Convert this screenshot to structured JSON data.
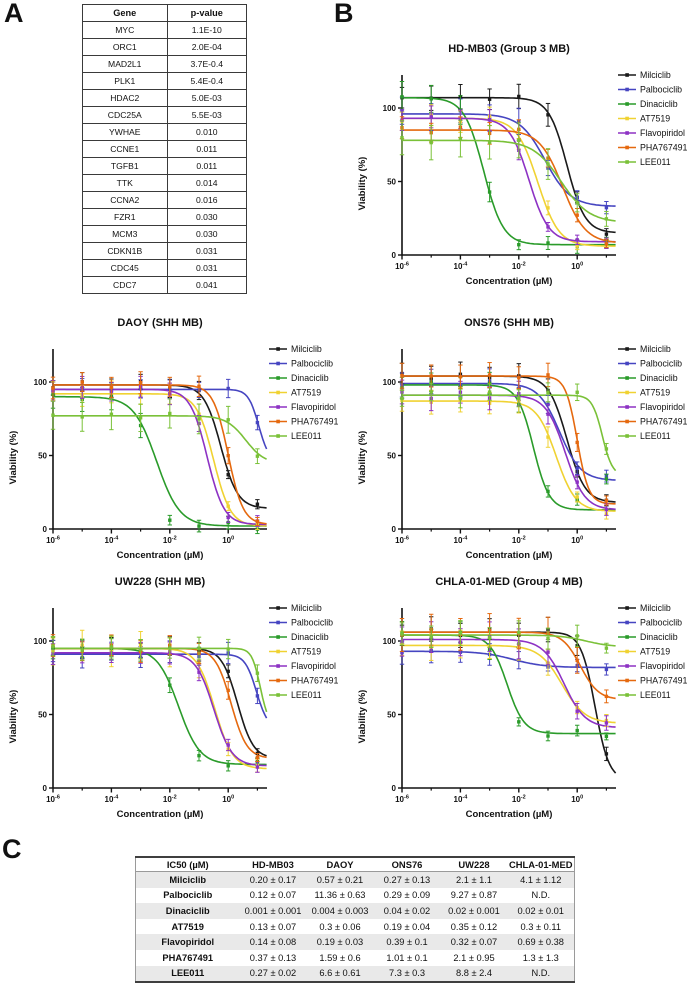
{
  "panel_labels": {
    "a": "A",
    "b": "B",
    "c": "C"
  },
  "gene_table": {
    "headers": [
      "Gene",
      "p-value"
    ],
    "rows": [
      [
        "MYC",
        "1.1E-10"
      ],
      [
        "ORC1",
        "2.0E-04"
      ],
      [
        "MAD2L1",
        "3.7E-0.4"
      ],
      [
        "PLK1",
        "5.4E-0.4"
      ],
      [
        "HDAC2",
        "5.0E-03"
      ],
      [
        "CDC25A",
        "5.5E-03"
      ],
      [
        "YWHAE",
        "0.010"
      ],
      [
        "CCNE1",
        "0.011"
      ],
      [
        "TGFB1",
        "0.011"
      ],
      [
        "TTK",
        "0.014"
      ],
      [
        "CCNA2",
        "0.016"
      ],
      [
        "FZR1",
        "0.030"
      ],
      [
        "MCM3",
        "0.030"
      ],
      [
        "CDKN1B",
        "0.031"
      ],
      [
        "CDC45",
        "0.031"
      ],
      [
        "CDC7",
        "0.041"
      ]
    ]
  },
  "chart_common": {
    "type": "line",
    "xlabel": "Concentration (µM)",
    "ylabel": "Viability (%)",
    "x_scale": "log10",
    "x_log_range": [
      -6,
      1.33
    ],
    "ylim": [
      0,
      122
    ],
    "y_ticks": [
      "0",
      "50",
      "100"
    ],
    "x_major_ticks": [
      {
        "log": -6,
        "base": "10",
        "exp": "-6"
      },
      {
        "log": -4,
        "base": "10",
        "exp": "-4"
      },
      {
        "log": -2,
        "base": "10",
        "exp": "-2"
      },
      {
        "log": 0,
        "base": "10",
        "exp": "0"
      }
    ],
    "x_minor_ticks": [
      -5,
      -3,
      -1,
      1
    ],
    "marker_decades": [
      -6,
      -5,
      -4,
      -3,
      -2,
      -1,
      0,
      1
    ],
    "grid": false,
    "legend_position": "right",
    "legend": [
      {
        "name": "Milciclib",
        "color": "#1a1a1a"
      },
      {
        "name": "Palbociclib",
        "color": "#4645c1"
      },
      {
        "name": "Dinaciclib",
        "color": "#2a9b2a"
      },
      {
        "name": "AT7519",
        "color": "#f0d232"
      },
      {
        "name": "Flavopiridol",
        "color": "#8d32c4"
      },
      {
        "name": "PHA767491",
        "color": "#e5690f"
      },
      {
        "name": "LEE011",
        "color": "#7ac138"
      }
    ]
  },
  "chart_data": [
    {
      "id": "hd-mb03",
      "type": "line",
      "title": "HD-MB03 (Group 3 MB)",
      "series": [
        {
          "name": "Milciclib",
          "color": "#1a1a1a",
          "top": 107,
          "bottom": 15,
          "log_ic50": -0.35,
          "slope": 1.4,
          "err": 7
        },
        {
          "name": "Palbociclib",
          "color": "#4645c1",
          "top": 96,
          "bottom": 33,
          "log_ic50": -1.1,
          "slope": 1.0,
          "err": 8
        },
        {
          "name": "Dinaciclib",
          "color": "#2a9b2a",
          "top": 107,
          "bottom": 7,
          "log_ic50": -3.2,
          "slope": 1.3,
          "err": 9,
          "pts": {
            "-2": 7
          }
        },
        {
          "name": "AT7519",
          "color": "#f0d232",
          "top": 93,
          "bottom": 6,
          "log_ic50": -1.35,
          "slope": 1.2,
          "err": 6
        },
        {
          "name": "Flavopiridol",
          "color": "#8d32c4",
          "top": 93,
          "bottom": 9,
          "log_ic50": -1.65,
          "slope": 1.3,
          "err": 6
        },
        {
          "name": "PHA767491",
          "color": "#e5690f",
          "top": 85,
          "bottom": 8,
          "log_ic50": -0.5,
          "slope": 1.1,
          "err": 6
        },
        {
          "name": "LEE011",
          "color": "#7ac138",
          "top": 78,
          "bottom": 22,
          "log_ic50": -0.55,
          "slope": 0.9,
          "err": 11,
          "pts": {
            "-2": 78
          }
        }
      ]
    },
    {
      "id": "daoy",
      "type": "line",
      "title": "DAOY (SHH MB)",
      "series": [
        {
          "name": "Milciclib",
          "color": "#1a1a1a",
          "top": 98,
          "bottom": 14,
          "log_ic50": -0.25,
          "slope": 1.5,
          "err": 5
        },
        {
          "name": "Palbociclib",
          "color": "#4645c1",
          "top": 95,
          "bottom": 45,
          "log_ic50": 1.05,
          "slope": 2.4,
          "err": 5
        },
        {
          "name": "Dinaciclib",
          "color": "#2a9b2a",
          "top": 90,
          "bottom": 2,
          "log_ic50": -2.45,
          "slope": 1.1,
          "err": 8,
          "pts": {
            "-2": 6
          }
        },
        {
          "name": "AT7519",
          "color": "#f0d232",
          "top": 92,
          "bottom": 2,
          "log_ic50": -0.5,
          "slope": 1.5,
          "err": 6
        },
        {
          "name": "Flavopiridol",
          "color": "#8d32c4",
          "top": 95,
          "bottom": 3,
          "log_ic50": -0.72,
          "slope": 1.5,
          "err": 6
        },
        {
          "name": "PHA767491",
          "color": "#e5690f",
          "top": 98,
          "bottom": 3,
          "log_ic50": 0.0,
          "slope": 1.7,
          "err": 6
        },
        {
          "name": "LEE011",
          "color": "#7ac138",
          "top": 77,
          "bottom": 44,
          "log_ic50": 0.6,
          "slope": 1.3,
          "err": 9
        }
      ]
    },
    {
      "id": "ons76",
      "type": "line",
      "title": "ONS76 (SHH MB)",
      "series": [
        {
          "name": "Milciclib",
          "color": "#1a1a1a",
          "top": 104,
          "bottom": 18,
          "log_ic50": -0.35,
          "slope": 1.4,
          "err": 7
        },
        {
          "name": "Palbociclib",
          "color": "#4645c1",
          "top": 99,
          "bottom": 33,
          "log_ic50": -0.6,
          "slope": 1.2,
          "err": 7
        },
        {
          "name": "Dinaciclib",
          "color": "#2a9b2a",
          "top": 98,
          "bottom": 13,
          "log_ic50": -1.5,
          "slope": 1.6,
          "err": 6,
          "pts": {
            "0": 20,
            "1": 34
          }
        },
        {
          "name": "AT7519",
          "color": "#f0d232",
          "top": 87,
          "bottom": 12,
          "log_ic50": -0.72,
          "slope": 1.3,
          "err": 7
        },
        {
          "name": "Flavopiridol",
          "color": "#8d32c4",
          "top": 91,
          "bottom": 13,
          "log_ic50": -0.41,
          "slope": 1.3,
          "err": 7
        },
        {
          "name": "PHA767491",
          "color": "#e5690f",
          "top": 104,
          "bottom": 17,
          "log_ic50": 0.0,
          "slope": 2.2,
          "err": 7
        },
        {
          "name": "LEE011",
          "color": "#7ac138",
          "top": 91,
          "bottom": 36,
          "log_ic50": 0.86,
          "slope": 2.5,
          "err": 5,
          "pts": {
            "0": 93
          }
        }
      ]
    },
    {
      "id": "uw228",
      "type": "line",
      "title": "UW228 (SHH MB)",
      "series": [
        {
          "name": "Milciclib",
          "color": "#1a1a1a",
          "top": 95,
          "bottom": 20,
          "log_ic50": 0.32,
          "slope": 1.6,
          "err": 5
        },
        {
          "name": "Palbociclib",
          "color": "#4645c1",
          "top": 91,
          "bottom": 40,
          "log_ic50": 0.97,
          "slope": 2.2,
          "err": 6
        },
        {
          "name": "Dinaciclib",
          "color": "#2a9b2a",
          "top": 95,
          "bottom": 16,
          "log_ic50": -1.7,
          "slope": 1.2,
          "err": 6,
          "pts": {
            "-1": 22
          }
        },
        {
          "name": "AT7519",
          "color": "#f0d232",
          "top": 95,
          "bottom": 13,
          "log_ic50": -0.46,
          "slope": 1.4,
          "err": 9
        },
        {
          "name": "Flavopiridol",
          "color": "#8d32c4",
          "top": 92,
          "bottom": 15,
          "log_ic50": -0.49,
          "slope": 1.4,
          "err": 6
        },
        {
          "name": "PHA767491",
          "color": "#e5690f",
          "top": 95,
          "bottom": 20,
          "log_ic50": 0.1,
          "slope": 1.6,
          "err": 6
        },
        {
          "name": "LEE011",
          "color": "#7ac138",
          "top": 95,
          "bottom": 42,
          "log_ic50": 1.1,
          "slope": 3.0,
          "err": 6
        }
      ]
    },
    {
      "id": "chla-01-med",
      "type": "line",
      "title": "CHLA-01-MED (Group 4 MB)",
      "series": [
        {
          "name": "Milciclib",
          "color": "#1a1a1a",
          "top": 106,
          "bottom": 5,
          "log_ic50": 0.61,
          "slope": 1.8,
          "err": 7
        },
        {
          "name": "Palbociclib",
          "color": "#4645c1",
          "top": 93,
          "bottom": 82,
          "log_ic50": -2.2,
          "slope": 0.8,
          "err": 7
        },
        {
          "name": "Dinaciclib",
          "color": "#2a9b2a",
          "top": 104,
          "bottom": 37,
          "log_ic50": -2.4,
          "slope": 1.5,
          "err": 6,
          "pts": {
            "-2": 45
          }
        },
        {
          "name": "AT7519",
          "color": "#f0d232",
          "top": 97,
          "bottom": 44,
          "log_ic50": -0.52,
          "slope": 1.1,
          "err": 8
        },
        {
          "name": "Flavopiridol",
          "color": "#8d32c4",
          "top": 101,
          "bottom": 41,
          "log_ic50": -0.45,
          "slope": 1.2,
          "err": 9
        },
        {
          "name": "PHA767491",
          "color": "#e5690f",
          "top": 106,
          "bottom": 60,
          "log_ic50": 0.11,
          "slope": 1.4,
          "err": 10
        },
        {
          "name": "LEE011",
          "color": "#7ac138",
          "top": 104,
          "bottom": 96,
          "log_ic50": 0.3,
          "slope": 1.0,
          "err": 7
        }
      ]
    }
  ],
  "ic50_table": {
    "col_headers": [
      "IC50 (µM)",
      "HD-MB03",
      "DAOY",
      "ONS76",
      "UW228",
      "CHLA-01-MED"
    ],
    "rows": [
      {
        "drug": "Milciclib",
        "values": [
          "0.20 ± 0.17",
          "0.57 ± 0.21",
          "0.27 ± 0.13",
          "2.1 ± 1.1",
          "4.1 ± 1.12"
        ]
      },
      {
        "drug": "Palbociclib",
        "values": [
          "0.12 ± 0.07",
          "11.36 ± 0.63",
          "0.29 ± 0.09",
          "9.27 ± 0.87",
          "N.D."
        ]
      },
      {
        "drug": "Dinaciclib",
        "values": [
          "0.001 ± 0.001",
          "0.004 ± 0.003",
          "0.04 ± 0.02",
          "0.02 ± 0.001",
          "0.02 ± 0.01"
        ]
      },
      {
        "drug": "AT7519",
        "values": [
          "0.13 ± 0.07",
          "0.3 ± 0.06",
          "0.19 ± 0.04",
          "0.35 ± 0.12",
          "0.3 ± 0.11"
        ]
      },
      {
        "drug": "Flavopiridol",
        "values": [
          "0.14 ± 0.08",
          "0.19 ± 0.03",
          "0.39 ± 0.1",
          "0.32 ± 0.07",
          "0.69 ± 0.38"
        ]
      },
      {
        "drug": "PHA767491",
        "values": [
          "0.37 ± 0.13",
          "1.59 ± 0.6",
          "1.01 ± 0.1",
          "2.1 ± 0.95",
          "1.3 ± 1.3"
        ]
      },
      {
        "drug": "LEE011",
        "values": [
          "0.27 ± 0.02",
          "6.6 ± 0.61",
          "7.3 ± 0.3",
          "8.8 ± 2.4",
          "N.D."
        ]
      }
    ]
  }
}
